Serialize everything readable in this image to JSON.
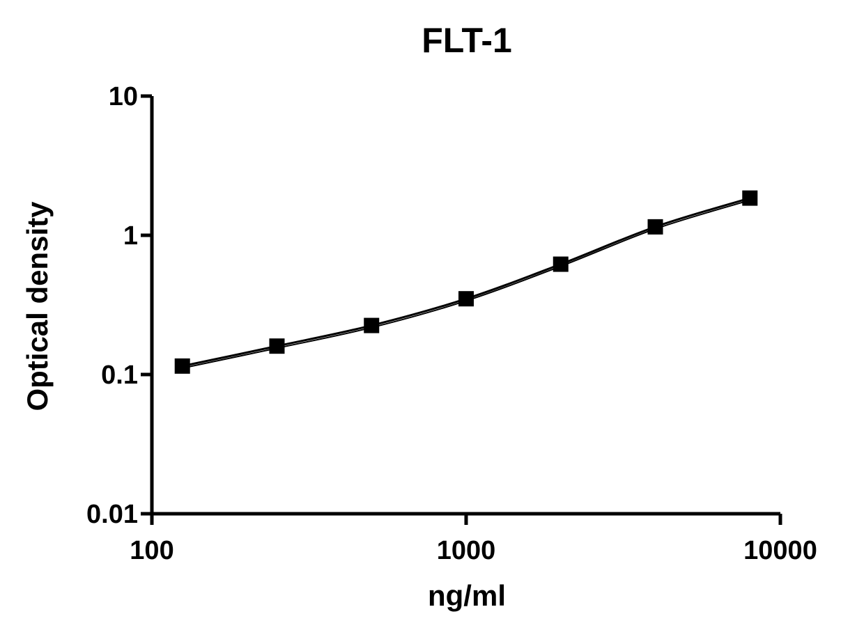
{
  "chart_data": {
    "type": "line",
    "title": "FLT-1",
    "xlabel": "ng/ml",
    "ylabel": "Optical density",
    "x_scale": "log",
    "y_scale": "log",
    "xlim": [
      100,
      10000
    ],
    "ylim": [
      0.01,
      10
    ],
    "x_ticks": [
      "100",
      "1000",
      "10000"
    ],
    "y_ticks": [
      "0.01",
      "0.1",
      "1",
      "10"
    ],
    "grid": false,
    "series": [
      {
        "x": [
          125,
          250,
          500,
          1000,
          2000,
          4000,
          8000
        ],
        "y": [
          0.115,
          0.16,
          0.225,
          0.35,
          0.62,
          1.15,
          1.85
        ],
        "marker": "square",
        "color": "#000000"
      }
    ]
  }
}
